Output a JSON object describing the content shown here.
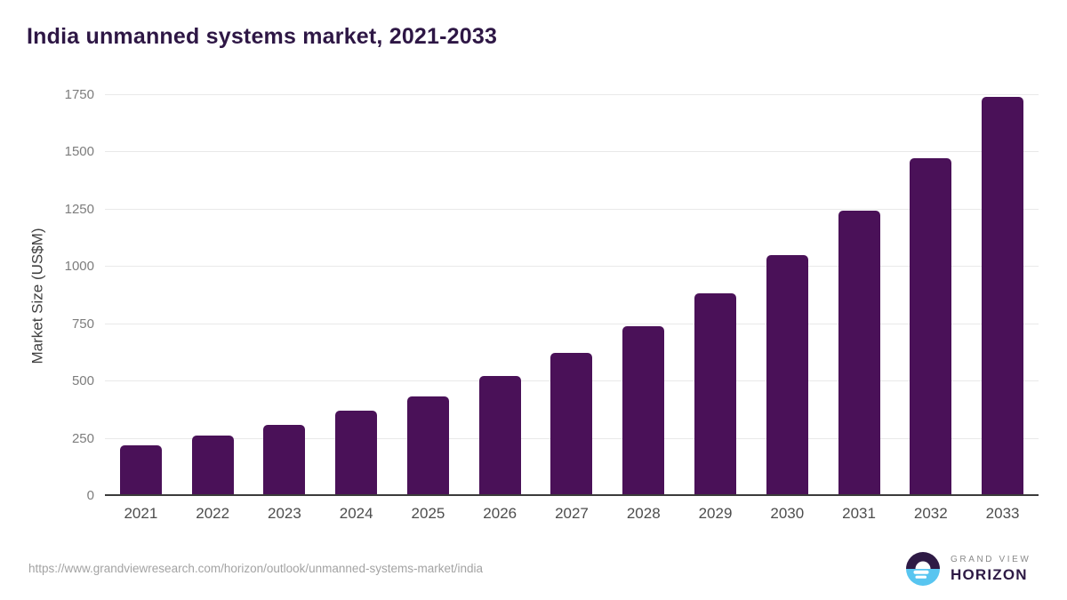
{
  "page": {
    "title": "India unmanned systems market, 2021-2033"
  },
  "chart_data": {
    "type": "bar",
    "title": "India unmanned systems market, 2021-2033",
    "categories": [
      "2021",
      "2022",
      "2023",
      "2024",
      "2025",
      "2026",
      "2027",
      "2028",
      "2029",
      "2030",
      "2031",
      "2032",
      "2033"
    ],
    "values": [
      222,
      262,
      312,
      371,
      434,
      523,
      625,
      742,
      883,
      1051,
      1246,
      1473,
      1742
    ],
    "xlabel": "",
    "ylabel": "Market Size (US$M)",
    "ylim": [
      0,
      1750
    ],
    "yticks": [
      0,
      250,
      500,
      750,
      1000,
      1250,
      1500,
      1750
    ],
    "grid": "horizontal-only",
    "legend": "none",
    "bar_color": "#4a1158"
  },
  "footer": {
    "source_url": "https://www.grandviewresearch.com/horizon/outlook/unmanned-systems-market/india",
    "logo": {
      "icon": "horizon-sunrise-icon",
      "brand_top": "GRAND VIEW",
      "brand_bottom": "HORIZON"
    }
  },
  "colors": {
    "bar": "#4a1158",
    "title_text": "#2e1745",
    "y_tick_text": "#7d7d7d",
    "x_tick_text": "#4d4d4d",
    "y_axis_title_text": "#3f3f3f",
    "gridline": "#e9e9e9",
    "axis_baseline": "#3b3b3b",
    "source_url_text": "#a3a3a3",
    "logo_dark_purple": "#2e1a45",
    "logo_light_blue": "#58c5f0",
    "logo_gray": "#8a8a8a"
  }
}
